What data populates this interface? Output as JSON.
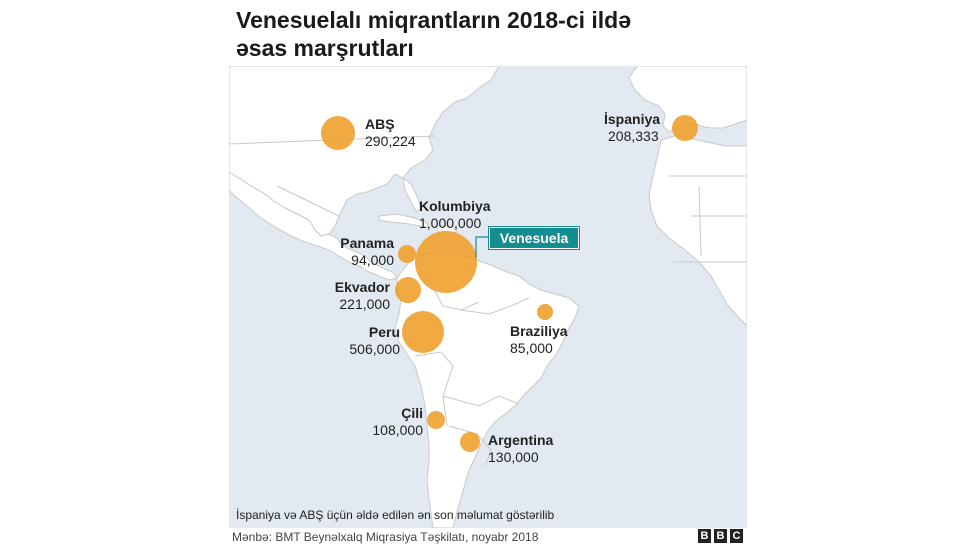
{
  "title": {
    "line1": "Venesuelalı miqrantların 2018-ci ildə",
    "line2": "əsas marşrutları"
  },
  "colors": {
    "ocean": "#e2e9f1",
    "land": "#ffffff",
    "border": "#c9c9c9",
    "bubble": "#f0a02e",
    "callout": "#138d90"
  },
  "origin": {
    "name": "Venesuela"
  },
  "destinations": [
    {
      "name": "ABŞ",
      "value": "290,224",
      "count": 290224
    },
    {
      "name": "İspaniya",
      "value": "208,333",
      "count": 208333
    },
    {
      "name": "Kolumbiya",
      "value": "1,000,000",
      "count": 1000000
    },
    {
      "name": "Panama",
      "value": "94,000",
      "count": 94000
    },
    {
      "name": "Ekvador",
      "value": "221,000",
      "count": 221000
    },
    {
      "name": "Peru",
      "value": "506,000",
      "count": 506000
    },
    {
      "name": "Braziliya",
      "value": "85,000",
      "count": 85000
    },
    {
      "name": "Çili",
      "value": "108,000",
      "count": 108000
    },
    {
      "name": "Argentina",
      "value": "130,000",
      "count": 130000
    }
  ],
  "note": "İspaniya və ABŞ üçün əldə edilən ən son məlumat göstərilib",
  "source": "Mənbə: BMT Beynəlxalq Miqrasiya Təşkilatı, noyabr 2018",
  "logo": [
    "B",
    "B",
    "C"
  ]
}
